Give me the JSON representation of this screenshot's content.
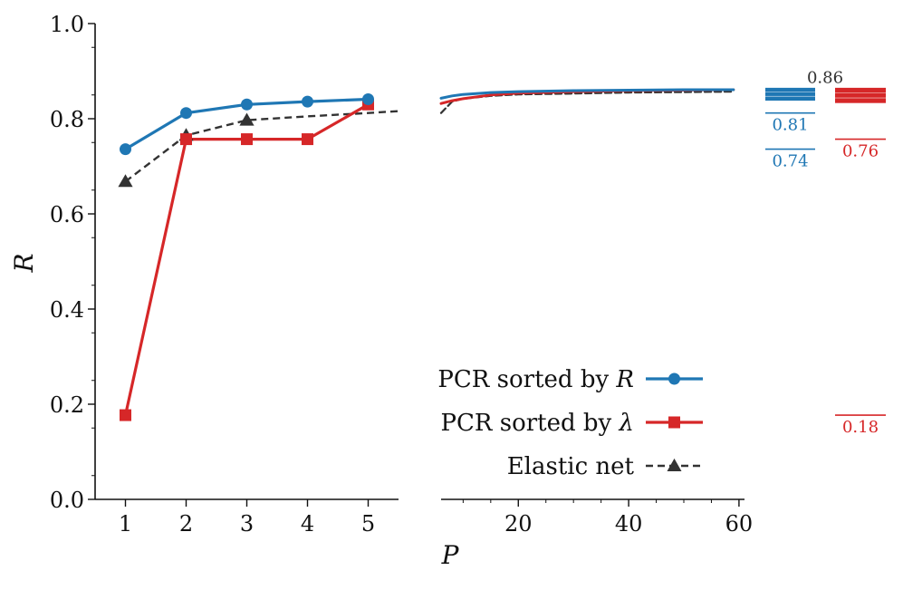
{
  "chart_data": {
    "type": "line",
    "title": "",
    "xlabel": "P",
    "ylabel": "R",
    "ylim": [
      0,
      1
    ],
    "grid": false,
    "legend_position": "bottom-right",
    "y_ticks": [
      0.0,
      0.2,
      0.4,
      0.6,
      0.8,
      1.0
    ],
    "y_tick_labels": [
      "0.0",
      "0.2",
      "0.4",
      "0.6",
      "0.8",
      "1.0"
    ],
    "left_panel": {
      "xlim": [
        0.5,
        5.5
      ],
      "x_ticks": [
        1,
        2,
        3,
        4,
        5
      ],
      "x_tick_labels": [
        "1",
        "2",
        "3",
        "4",
        "5"
      ]
    },
    "right_panel": {
      "xlim": [
        6,
        61
      ],
      "x_ticks": [
        20,
        40,
        60
      ],
      "x_tick_labels": [
        "20",
        "40",
        "60"
      ]
    },
    "series": [
      {
        "name": "PCR sorted by R",
        "label_text": "PCR sorted by ",
        "label_symbol": "R",
        "color": "#1f77b4",
        "marker": "circle",
        "dash": "solid",
        "x": [
          1,
          2,
          3,
          4,
          5
        ],
        "values": [
          0.736,
          0.812,
          0.83,
          0.836,
          0.841
        ],
        "tail_x": [
          6,
          8,
          10,
          15,
          20,
          30,
          40,
          50,
          59
        ],
        "tail_values": [
          0.843,
          0.848,
          0.851,
          0.855,
          0.857,
          0.859,
          0.86,
          0.861,
          0.861
        ]
      },
      {
        "name": "PCR sorted by λ",
        "label_text": "PCR sorted by ",
        "label_symbol": "λ",
        "color": "#d62728",
        "marker": "square",
        "dash": "solid",
        "x": [
          1,
          2,
          3,
          4,
          5
        ],
        "values": [
          0.177,
          0.757,
          0.757,
          0.757,
          0.83
        ],
        "tail_x": [
          6,
          8,
          10,
          15,
          20,
          30,
          40,
          50,
          59
        ],
        "tail_values": [
          0.832,
          0.838,
          0.842,
          0.85,
          0.854,
          0.857,
          0.859,
          0.86,
          0.861
        ]
      },
      {
        "name": "Elastic net",
        "label_text": "Elastic net",
        "label_symbol": "",
        "color": "#333333",
        "marker": "triangle",
        "dash": "dashed",
        "x": [
          1,
          2,
          3
        ],
        "values": [
          0.668,
          0.765,
          0.797
        ],
        "line_x": [
          1,
          2,
          3,
          4,
          5,
          5.5
        ],
        "line_values": [
          0.668,
          0.765,
          0.797,
          0.805,
          0.812,
          0.816
        ],
        "tail_x": [
          6,
          8,
          10,
          15,
          20,
          30,
          40,
          50,
          59
        ],
        "tail_values": [
          0.812,
          0.836,
          0.842,
          0.848,
          0.851,
          0.853,
          0.855,
          0.856,
          0.857
        ]
      }
    ],
    "summary": {
      "blue": {
        "color": "#1f77b4",
        "ticks": [
          0.812,
          0.736
        ],
        "band_top": 0.865,
        "band_bottom": 0.838,
        "labels": [
          {
            "text": "0.81",
            "value": 0.81
          },
          {
            "text": "0.74",
            "value": 0.74
          }
        ]
      },
      "red": {
        "color": "#d62728",
        "ticks": [
          0.757,
          0.177
        ],
        "band_top": 0.865,
        "band_bottom": 0.833,
        "labels": [
          {
            "text": "0.76",
            "value": 0.76
          },
          {
            "text": "0.18",
            "value": 0.18
          }
        ]
      },
      "top_label": {
        "text": "0.86",
        "value": 0.86,
        "color": "#333333"
      }
    }
  }
}
